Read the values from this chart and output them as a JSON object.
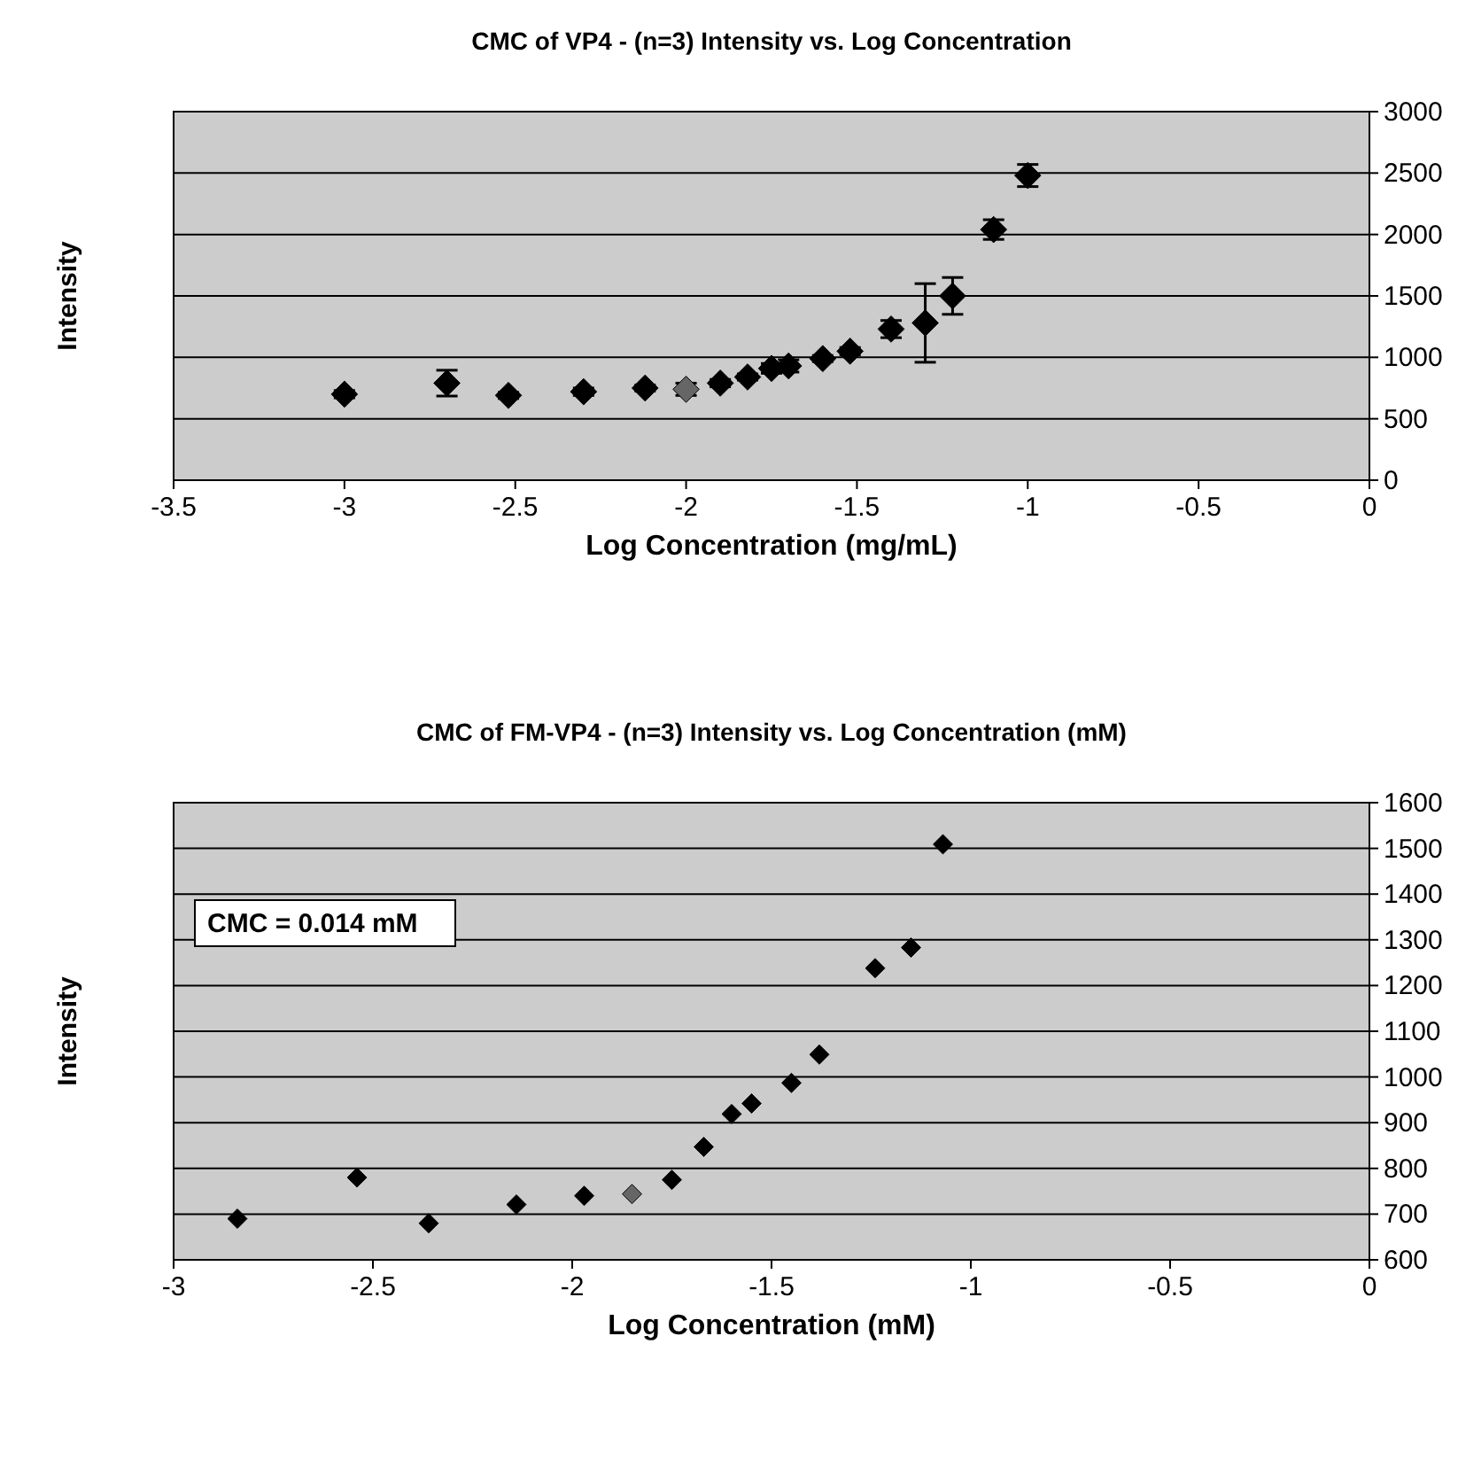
{
  "chart_data": [
    {
      "type": "scatter",
      "title": "CMC of VP4 - (n=3) Intensity vs. Log Concentration",
      "xlabel": "Log Concentration (mg/mL)",
      "ylabel": "Intensity",
      "x": [
        -3,
        -2.7,
        -2.52,
        -2.3,
        -2.12,
        -2,
        -1.9,
        -1.82,
        -1.75,
        -1.7,
        -1.6,
        -1.52,
        -1.4,
        -1.3,
        -1.22,
        -1.1,
        -1
      ],
      "values": [
        700,
        790,
        690,
        720,
        750,
        740,
        790,
        840,
        910,
        930,
        990,
        1050,
        1230,
        1280,
        1500,
        2040,
        2480
      ],
      "errors": [
        30,
        105,
        25,
        30,
        25,
        50,
        30,
        25,
        40,
        50,
        25,
        30,
        70,
        320,
        150,
        80,
        90
      ],
      "colors": [
        "#000000",
        "#000000",
        "#000000",
        "#000000",
        "#000000",
        "#666666",
        "#000000",
        "#000000",
        "#000000",
        "#000000",
        "#000000",
        "#000000",
        "#000000",
        "#000000",
        "#000000",
        "#000000",
        "#000000"
      ],
      "xlim": [
        -3.5,
        0
      ],
      "xticks": [
        -3.5,
        -3,
        -2.5,
        -2,
        -1.5,
        -1,
        -0.5,
        0
      ],
      "ylim": [
        0,
        3000
      ],
      "yticks": [
        0,
        500,
        1000,
        1500,
        2000,
        2500,
        3000
      ],
      "grid": "y",
      "marker": "diamond"
    },
    {
      "type": "scatter",
      "title": "CMC of FM-VP4 - (n=3) Intensity vs. Log Concentration (mM)",
      "xlabel": "Log Concentration (mM)",
      "ylabel": "Intensity",
      "x": [
        -2.84,
        -2.54,
        -2.36,
        -2.14,
        -1.97,
        -1.85,
        -1.75,
        -1.67,
        -1.6,
        -1.55,
        -1.45,
        -1.38,
        -1.24,
        -1.15,
        -1.07
      ],
      "values": [
        690,
        780,
        680,
        721,
        740,
        744,
        775,
        847,
        919,
        942,
        987,
        1049,
        1238,
        1283,
        1509
      ],
      "colors": [
        "#000000",
        "#000000",
        "#000000",
        "#000000",
        "#000000",
        "#666666",
        "#000000",
        "#000000",
        "#000000",
        "#000000",
        "#000000",
        "#000000",
        "#000000",
        "#000000",
        "#000000"
      ],
      "annotations": [
        "CMC = 0.014 mM"
      ],
      "xlim": [
        -3,
        0
      ],
      "xticks": [
        -3,
        -2.5,
        -2,
        -1.5,
        -1,
        -0.5,
        0
      ],
      "ylim": [
        600,
        1600
      ],
      "yticks": [
        600,
        700,
        800,
        900,
        1000,
        1100,
        1200,
        1300,
        1400,
        1500,
        1600
      ],
      "grid": "y",
      "marker": "diamond"
    }
  ]
}
